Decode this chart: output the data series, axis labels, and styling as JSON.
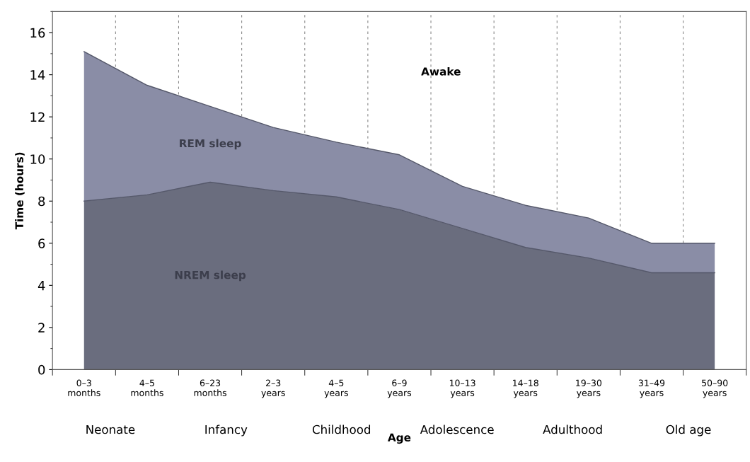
{
  "chart_data": {
    "type": "area",
    "stacked": true,
    "xlabel": "Age",
    "ylabel": "Time (hours)",
    "categories": [
      "0–3 months",
      "4–5 months",
      "6–23 months",
      "2–3 years",
      "4–5 years",
      "6–9 years",
      "10–13 years",
      "14–18 years",
      "19–30 years",
      "31–49 years",
      "50–90 years"
    ],
    "series": [
      {
        "name": "NREM sleep",
        "color": "#6a6d7e",
        "values": [
          8.0,
          8.3,
          8.9,
          8.5,
          8.2,
          7.6,
          6.7,
          5.8,
          5.3,
          4.6,
          4.6
        ]
      },
      {
        "name": "REM sleep",
        "color": "#8a8da6",
        "values": [
          7.1,
          5.2,
          3.6,
          3.0,
          2.6,
          2.6,
          2.0,
          2.0,
          1.9,
          1.4,
          1.4
        ]
      }
    ],
    "ylim": [
      0,
      17
    ],
    "yticks": [
      0,
      2,
      4,
      6,
      8,
      10,
      12,
      14,
      16
    ],
    "grid": "x",
    "annotations": [
      "Awake",
      "Neonate",
      "Infancy",
      "Childhood",
      "Adolescence",
      "Adulthood",
      "Old age"
    ]
  }
}
